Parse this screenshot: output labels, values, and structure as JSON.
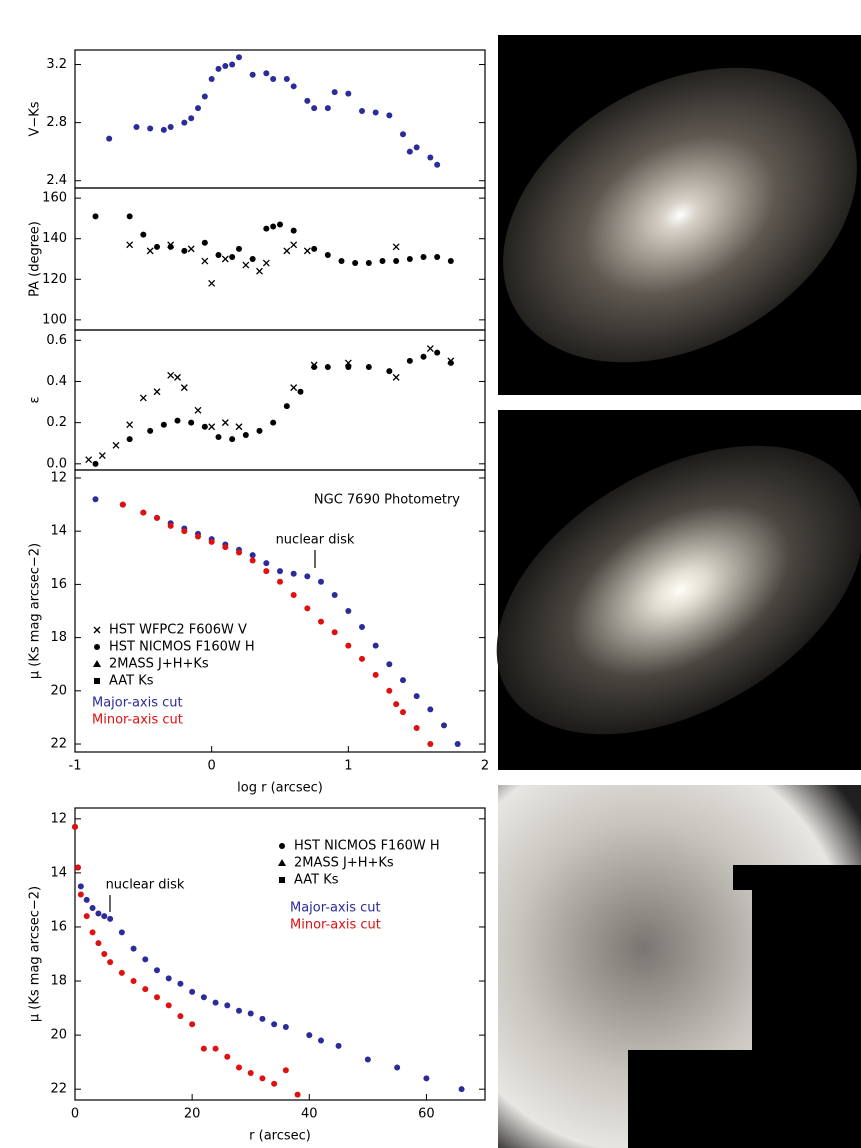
{
  "chart_data": [
    {
      "type": "scatter",
      "ylabel": "V−Ks",
      "xlim": [
        -1,
        2
      ],
      "ylim": [
        2.35,
        3.3
      ],
      "yticks": [
        2.4,
        2.8,
        3.2
      ],
      "series": [
        {
          "color": "#2b2b9a",
          "marker": "dot",
          "x": [
            -0.75,
            -0.55,
            -0.45,
            -0.35,
            -0.3,
            -0.2,
            -0.15,
            -0.1,
            -0.05,
            0.0,
            0.05,
            0.1,
            0.15,
            0.2,
            0.3,
            0.4,
            0.45,
            0.55,
            0.6,
            0.7,
            0.75,
            0.85,
            0.9,
            1.0,
            1.1,
            1.2,
            1.3,
            1.4,
            1.45,
            1.5,
            1.6,
            1.65
          ],
          "values": [
            2.69,
            2.77,
            2.76,
            2.75,
            2.77,
            2.8,
            2.83,
            2.9,
            2.98,
            3.1,
            3.17,
            3.19,
            3.2,
            3.25,
            3.13,
            3.14,
            3.1,
            3.1,
            3.05,
            2.95,
            2.9,
            2.9,
            3.01,
            3.0,
            2.88,
            2.87,
            2.85,
            2.72,
            2.6,
            2.63,
            2.56,
            2.51
          ]
        }
      ]
    },
    {
      "type": "scatter",
      "ylabel": "PA (degree)",
      "xlim": [
        -1,
        2
      ],
      "ylim": [
        95,
        165
      ],
      "yticks": [
        100,
        120,
        140,
        160
      ],
      "series": [
        {
          "color": "#000000",
          "marker": "x",
          "x": [
            -0.6,
            -0.45,
            -0.3,
            -0.15,
            -0.05,
            0.0,
            0.1,
            0.25,
            0.35,
            0.4,
            0.55,
            0.6,
            0.7,
            1.35
          ],
          "values": [
            137,
            134,
            137,
            135,
            129,
            118,
            130,
            127,
            124,
            128,
            134,
            137,
            134,
            136
          ]
        },
        {
          "color": "#000000",
          "marker": "dot",
          "x": [
            -0.85,
            -0.6,
            -0.5,
            -0.4,
            -0.3,
            -0.2,
            -0.05,
            0.05,
            0.15,
            0.2,
            0.3,
            0.4,
            0.45,
            0.5,
            0.6,
            0.75,
            0.85,
            0.95,
            1.05,
            1.15,
            1.25,
            1.35,
            1.45,
            1.55,
            1.65,
            1.75
          ],
          "values": [
            151,
            151,
            142,
            136,
            136,
            134,
            138,
            132,
            131,
            135,
            130,
            145,
            146,
            147,
            144,
            135,
            132,
            129,
            128,
            128,
            129,
            129,
            130,
            131,
            131,
            129
          ]
        }
      ]
    },
    {
      "type": "scatter",
      "ylabel": "ε",
      "xlim": [
        -1,
        2
      ],
      "ylim": [
        -0.03,
        0.65
      ],
      "yticks": [
        {
          "value": 0,
          "label": "0.0"
        },
        0.2,
        0.4,
        0.6
      ],
      "series": [
        {
          "color": "#000000",
          "marker": "x",
          "x": [
            -0.9,
            -0.8,
            -0.7,
            -0.6,
            -0.5,
            -0.4,
            -0.3,
            -0.25,
            -0.2,
            -0.1,
            0.0,
            0.1,
            0.2,
            0.6,
            0.75,
            1.0,
            1.35,
            1.6,
            1.75
          ],
          "values": [
            0.02,
            0.04,
            0.09,
            0.19,
            0.32,
            0.35,
            0.43,
            0.42,
            0.37,
            0.26,
            0.18,
            0.2,
            0.18,
            0.37,
            0.48,
            0.49,
            0.42,
            0.56,
            0.5
          ]
        },
        {
          "color": "#000000",
          "marker": "dot",
          "x": [
            -0.85,
            -0.6,
            -0.45,
            -0.35,
            -0.25,
            -0.15,
            -0.05,
            0.05,
            0.15,
            0.25,
            0.35,
            0.45,
            0.55,
            0.65,
            0.75,
            0.85,
            1.0,
            1.15,
            1.3,
            1.45,
            1.55,
            1.65,
            1.75
          ],
          "values": [
            0.0,
            0.12,
            0.16,
            0.19,
            0.21,
            0.2,
            0.18,
            0.13,
            0.12,
            0.14,
            0.16,
            0.2,
            0.28,
            0.35,
            0.47,
            0.47,
            0.47,
            0.47,
            0.45,
            0.5,
            0.52,
            0.54,
            0.49
          ]
        }
      ]
    },
    {
      "type": "scatter",
      "title": "NGC 7690 Photometry",
      "annotation": "nuclear disk",
      "ylabel": "μ (Ks mag arcsec−2)",
      "xlabel": "log r (arcsec)",
      "xlim": [
        -1,
        2
      ],
      "xticks": [
        -1,
        0,
        1,
        2
      ],
      "ylim": [
        22.3,
        11.7
      ],
      "yticks": [
        12,
        14,
        16,
        18,
        20,
        22
      ],
      "legend_markers": [
        {
          "label": "HST WFPC2 F606W V",
          "marker": "x"
        },
        {
          "label": "HST NICMOS F160W H",
          "marker": "dot"
        },
        {
          "label": "2MASS J+H+Ks",
          "marker": "triangle"
        },
        {
          "label": "AAT Ks",
          "marker": "square"
        }
      ],
      "series": [
        {
          "name": "Major-axis cut",
          "color": "#2b2b9a",
          "marker": "dot",
          "x": [
            -0.85,
            -0.65,
            -0.5,
            -0.4,
            -0.3,
            -0.2,
            -0.1,
            0.0,
            0.1,
            0.2,
            0.3,
            0.4,
            0.5,
            0.6,
            0.7,
            0.8,
            0.9,
            1.0,
            1.1,
            1.2,
            1.3,
            1.4,
            1.5,
            1.6,
            1.7,
            1.8
          ],
          "values": [
            12.8,
            13.0,
            13.3,
            13.5,
            13.7,
            13.9,
            14.1,
            14.3,
            14.5,
            14.7,
            14.9,
            15.2,
            15.5,
            15.6,
            15.7,
            15.9,
            16.4,
            17.0,
            17.6,
            18.3,
            19.0,
            19.6,
            20.2,
            20.7,
            21.3,
            22.0
          ]
        },
        {
          "name": "Minor-axis cut",
          "color": "#e01010",
          "marker": "dot",
          "x": [
            -0.65,
            -0.5,
            -0.4,
            -0.3,
            -0.2,
            -0.1,
            0.0,
            0.1,
            0.2,
            0.3,
            0.4,
            0.5,
            0.6,
            0.7,
            0.8,
            0.9,
            1.0,
            1.1,
            1.2,
            1.3,
            1.35,
            1.4,
            1.5,
            1.6
          ],
          "values": [
            13.0,
            13.3,
            13.5,
            13.8,
            14.0,
            14.2,
            14.4,
            14.6,
            14.8,
            15.1,
            15.5,
            15.9,
            16.4,
            16.9,
            17.4,
            17.8,
            18.3,
            18.8,
            19.4,
            20.0,
            20.5,
            20.8,
            21.4,
            22.0
          ]
        }
      ]
    },
    {
      "type": "scatter",
      "annotation": "nuclear disk",
      "ylabel": "μ (Ks mag arcsec−2)",
      "xlabel": "r (arcsec)",
      "xlim": [
        0,
        70
      ],
      "xticks": [
        0,
        20,
        40,
        60
      ],
      "ylim": [
        22.4,
        11.6
      ],
      "yticks": [
        12,
        14,
        16,
        18,
        20,
        22
      ],
      "legend_markers": [
        {
          "label": "HST NICMOS F160W H",
          "marker": "dot"
        },
        {
          "label": "2MASS J+H+Ks",
          "marker": "triangle"
        },
        {
          "label": "AAT Ks",
          "marker": "square"
        }
      ],
      "series": [
        {
          "name": "Major-axis cut",
          "color": "#2b2b9a",
          "marker": "dot",
          "x": [
            0,
            0.5,
            1,
            2,
            3,
            4,
            5,
            6,
            8,
            10,
            12,
            14,
            16,
            18,
            20,
            22,
            24,
            26,
            28,
            30,
            32,
            34,
            36,
            40,
            42,
            45,
            50,
            55,
            60,
            66
          ],
          "values": [
            12.3,
            13.8,
            14.5,
            15.0,
            15.3,
            15.5,
            15.6,
            15.7,
            16.2,
            16.8,
            17.2,
            17.6,
            17.9,
            18.1,
            18.4,
            18.6,
            18.8,
            18.9,
            19.1,
            19.2,
            19.4,
            19.6,
            19.7,
            20.0,
            20.2,
            20.4,
            20.9,
            21.2,
            21.6,
            22.0
          ]
        },
        {
          "name": "Minor-axis cut",
          "color": "#e01010",
          "marker": "dot",
          "x": [
            0,
            0.5,
            1,
            2,
            3,
            4,
            5,
            6,
            8,
            10,
            12,
            14,
            16,
            18,
            20,
            22,
            24,
            26,
            28,
            30,
            32,
            34,
            36,
            38
          ],
          "values": [
            12.3,
            13.8,
            14.8,
            15.6,
            16.2,
            16.6,
            17.0,
            17.3,
            17.7,
            18.0,
            18.3,
            18.6,
            18.9,
            19.3,
            19.6,
            20.5,
            20.5,
            20.8,
            21.2,
            21.4,
            21.6,
            21.8,
            21.3,
            22.2
          ]
        }
      ]
    }
  ]
}
